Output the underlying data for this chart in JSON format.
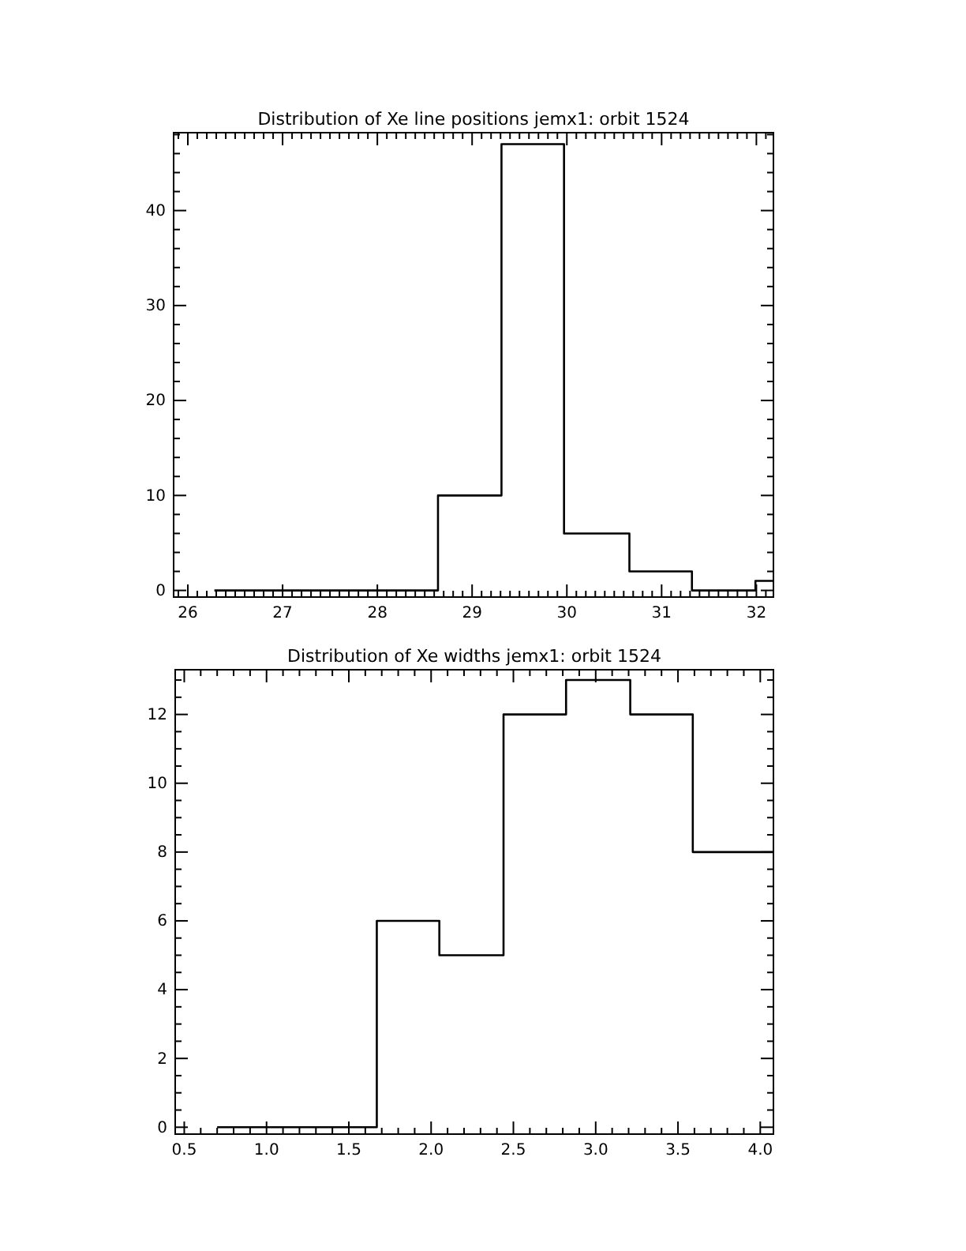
{
  "chart_data": [
    {
      "type": "step",
      "title": "Distribution of Xe line positions jemx1: orbit 1524",
      "x": [
        26.28,
        28.64,
        29.31,
        29.97,
        30.66,
        31.32,
        31.99,
        32.18
      ],
      "values": [
        0,
        10,
        47,
        6,
        2,
        0,
        1,
        1
      ],
      "color": "#000000",
      "xlim": [
        25.85,
        32.18
      ],
      "ylim": [
        -0.7,
        48.2
      ],
      "xticks": [
        {
          "value": 25.9,
          "label": null
        },
        26,
        {
          "value": 26.1,
          "label": null
        },
        {
          "value": 26.2,
          "label": null
        },
        {
          "value": 26.3,
          "label": null
        },
        {
          "value": 26.4,
          "label": null
        },
        {
          "value": 26.5,
          "label": null
        },
        {
          "value": 26.6,
          "label": null
        },
        {
          "value": 26.7,
          "label": null
        },
        {
          "value": 26.8,
          "label": null
        },
        {
          "value": 26.9,
          "label": null
        },
        27,
        {
          "value": 27.1,
          "label": null
        },
        {
          "value": 27.2,
          "label": null
        },
        {
          "value": 27.3,
          "label": null
        },
        {
          "value": 27.4,
          "label": null
        },
        {
          "value": 27.5,
          "label": null
        },
        {
          "value": 27.6,
          "label": null
        },
        {
          "value": 27.7,
          "label": null
        },
        {
          "value": 27.8,
          "label": null
        },
        {
          "value": 27.9,
          "label": null
        },
        28,
        {
          "value": 28.1,
          "label": null
        },
        {
          "value": 28.2,
          "label": null
        },
        {
          "value": 28.3,
          "label": null
        },
        {
          "value": 28.4,
          "label": null
        },
        {
          "value": 28.5,
          "label": null
        },
        {
          "value": 28.6,
          "label": null
        },
        {
          "value": 28.7,
          "label": null
        },
        {
          "value": 28.8,
          "label": null
        },
        {
          "value": 28.9,
          "label": null
        },
        29,
        {
          "value": 29.1,
          "label": null
        },
        {
          "value": 29.2,
          "label": null
        },
        {
          "value": 29.3,
          "label": null
        },
        {
          "value": 29.4,
          "label": null
        },
        {
          "value": 29.5,
          "label": null
        },
        {
          "value": 29.6,
          "label": null
        },
        {
          "value": 29.7,
          "label": null
        },
        {
          "value": 29.8,
          "label": null
        },
        {
          "value": 29.9,
          "label": null
        },
        30,
        {
          "value": 30.1,
          "label": null
        },
        {
          "value": 30.2,
          "label": null
        },
        {
          "value": 30.3,
          "label": null
        },
        {
          "value": 30.4,
          "label": null
        },
        {
          "value": 30.5,
          "label": null
        },
        {
          "value": 30.6,
          "label": null
        },
        {
          "value": 30.7,
          "label": null
        },
        {
          "value": 30.8,
          "label": null
        },
        {
          "value": 30.9,
          "label": null
        },
        31,
        {
          "value": 31.1,
          "label": null
        },
        {
          "value": 31.2,
          "label": null
        },
        {
          "value": 31.3,
          "label": null
        },
        {
          "value": 31.4,
          "label": null
        },
        {
          "value": 31.5,
          "label": null
        },
        {
          "value": 31.6,
          "label": null
        },
        {
          "value": 31.7,
          "label": null
        },
        {
          "value": 31.8,
          "label": null
        },
        {
          "value": 31.9,
          "label": null
        },
        32,
        {
          "value": 32.1,
          "label": null
        }
      ],
      "yticks": [
        0,
        {
          "value": 2,
          "label": null
        },
        {
          "value": 4,
          "label": null
        },
        {
          "value": 6,
          "label": null
        },
        {
          "value": 8,
          "label": null
        },
        10,
        {
          "value": 12,
          "label": null
        },
        {
          "value": 14,
          "label": null
        },
        {
          "value": 16,
          "label": null
        },
        {
          "value": 18,
          "label": null
        },
        20,
        {
          "value": 22,
          "label": null
        },
        {
          "value": 24,
          "label": null
        },
        {
          "value": 26,
          "label": null
        },
        {
          "value": 28,
          "label": null
        },
        30,
        {
          "value": 32,
          "label": null
        },
        {
          "value": 34,
          "label": null
        },
        {
          "value": 36,
          "label": null
        },
        {
          "value": 38,
          "label": null
        },
        40,
        {
          "value": 42,
          "label": null
        },
        {
          "value": 44,
          "label": null
        },
        {
          "value": 46,
          "label": null
        },
        {
          "value": 48,
          "label": null
        }
      ]
    },
    {
      "type": "step",
      "title": "Distribution of Xe widths jemx1: orbit 1524",
      "x": [
        0.7,
        1.67,
        2.05,
        2.44,
        2.82,
        3.21,
        3.59,
        4.08
      ],
      "values": [
        0,
        6,
        5,
        12,
        13,
        12,
        8,
        8
      ],
      "color": "#000000",
      "xlim": [
        0.445,
        4.08
      ],
      "ylim": [
        -0.2,
        13.3
      ],
      "xticks": [
        0.5,
        {
          "value": 0.6,
          "label": null
        },
        {
          "value": 0.7,
          "label": null
        },
        {
          "value": 0.8,
          "label": null
        },
        {
          "value": 0.9,
          "label": null
        },
        {
          "value": 1.0,
          "label": "1.0"
        },
        {
          "value": 1.1,
          "label": null
        },
        {
          "value": 1.2,
          "label": null
        },
        {
          "value": 1.3,
          "label": null
        },
        {
          "value": 1.4,
          "label": null
        },
        1.5,
        {
          "value": 1.6,
          "label": null
        },
        {
          "value": 1.7,
          "label": null
        },
        {
          "value": 1.8,
          "label": null
        },
        {
          "value": 1.9,
          "label": null
        },
        {
          "value": 2.0,
          "label": "2.0"
        },
        {
          "value": 2.1,
          "label": null
        },
        {
          "value": 2.2,
          "label": null
        },
        {
          "value": 2.3,
          "label": null
        },
        {
          "value": 2.4,
          "label": null
        },
        2.5,
        {
          "value": 2.6,
          "label": null
        },
        {
          "value": 2.7,
          "label": null
        },
        {
          "value": 2.8,
          "label": null
        },
        {
          "value": 2.9,
          "label": null
        },
        {
          "value": 3.0,
          "label": "3.0"
        },
        {
          "value": 3.1,
          "label": null
        },
        {
          "value": 3.2,
          "label": null
        },
        {
          "value": 3.3,
          "label": null
        },
        {
          "value": 3.4,
          "label": null
        },
        3.5,
        {
          "value": 3.6,
          "label": null
        },
        {
          "value": 3.7,
          "label": null
        },
        {
          "value": 3.8,
          "label": null
        },
        {
          "value": 3.9,
          "label": null
        },
        {
          "value": 4.0,
          "label": "4.0"
        }
      ],
      "yticks": [
        0,
        {
          "value": 0.5,
          "label": null
        },
        {
          "value": 1,
          "label": null
        },
        {
          "value": 1.5,
          "label": null
        },
        2,
        {
          "value": 2.5,
          "label": null
        },
        {
          "value": 3,
          "label": null
        },
        {
          "value": 3.5,
          "label": null
        },
        4,
        {
          "value": 4.5,
          "label": null
        },
        {
          "value": 5,
          "label": null
        },
        {
          "value": 5.5,
          "label": null
        },
        6,
        {
          "value": 6.5,
          "label": null
        },
        {
          "value": 7,
          "label": null
        },
        {
          "value": 7.5,
          "label": null
        },
        8,
        {
          "value": 8.5,
          "label": null
        },
        {
          "value": 9,
          "label": null
        },
        {
          "value": 9.5,
          "label": null
        },
        10,
        {
          "value": 10.5,
          "label": null
        },
        {
          "value": 11,
          "label": null
        },
        {
          "value": 11.5,
          "label": null
        },
        12,
        {
          "value": 12.5,
          "label": null
        },
        {
          "value": 13,
          "label": null
        }
      ]
    }
  ]
}
